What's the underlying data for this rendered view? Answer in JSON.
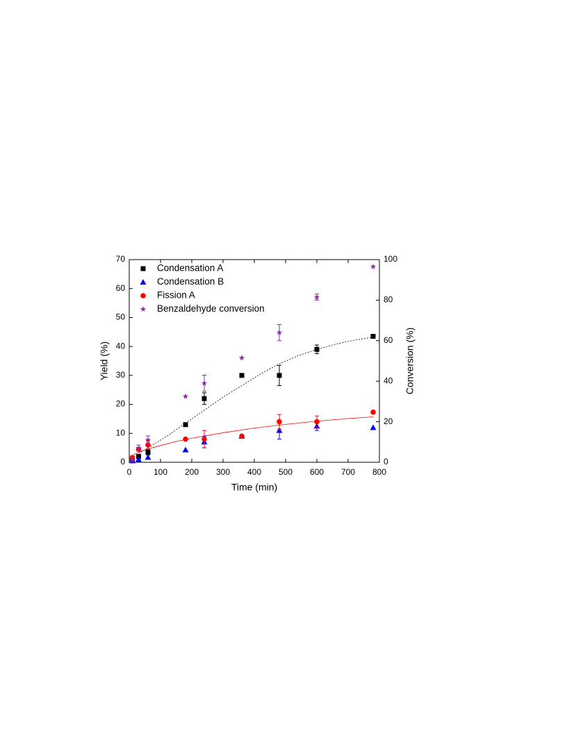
{
  "chart_data": {
    "type": "scatter",
    "x_label": "Time (min)",
    "y_label": "Yield (%)",
    "y2_label": "Conversion (%)",
    "xlim": [
      0,
      800
    ],
    "xticks": [
      0,
      100,
      200,
      300,
      400,
      500,
      600,
      700,
      800
    ],
    "ylim": [
      0,
      70
    ],
    "yticks": [
      0,
      10,
      20,
      30,
      40,
      50,
      60,
      70
    ],
    "y2lim": [
      0,
      100
    ],
    "y2ticks": [
      0,
      20,
      40,
      60,
      80,
      100
    ],
    "legend": "top-left",
    "series": [
      {
        "name": "Condensation A",
        "color": "#000000",
        "marker": "square",
        "x": [
          10,
          30,
          60,
          180,
          240,
          360,
          480,
          600,
          780
        ],
        "values": [
          1,
          2,
          3.5,
          13,
          22,
          30,
          30,
          39,
          43.5
        ],
        "errors": [
          null,
          null,
          1,
          null,
          2,
          null,
          3.5,
          1.5,
          null
        ]
      },
      {
        "name": "Condensation B",
        "color": "#0000ff",
        "marker": "triangle",
        "x": [
          10,
          30,
          60,
          180,
          240,
          360,
          480,
          600,
          780
        ],
        "values": [
          0.5,
          1,
          1.7,
          4.3,
          7,
          9,
          11,
          12.5,
          12
        ],
        "errors": [
          null,
          null,
          null,
          null,
          2,
          null,
          3,
          1.5,
          null
        ]
      },
      {
        "name": "Fission A",
        "color": "#ff0000",
        "marker": "circle",
        "x": [
          10,
          30,
          60,
          180,
          240,
          360,
          480,
          600,
          780
        ],
        "values": [
          1.5,
          4.5,
          6,
          8,
          8,
          9,
          14,
          14,
          17.3
        ],
        "errors": [
          null,
          null,
          1.5,
          null,
          3,
          null,
          2.5,
          2,
          null
        ]
      },
      {
        "name": "Benzaldehyde conversion",
        "color": "#8b2f9f",
        "marker": "star",
        "axis": "y2",
        "x": [
          10,
          30,
          60,
          180,
          240,
          360,
          480,
          600,
          780
        ],
        "values": [
          1,
          7,
          11,
          32.5,
          39,
          51.5,
          64,
          81.5,
          96.5
        ],
        "errors": [
          null,
          1.5,
          2,
          null,
          4,
          null,
          4,
          1.5,
          null
        ]
      }
    ],
    "fits": [
      {
        "color": "#000000",
        "dash": "2,2",
        "x": [
          0,
          60,
          120,
          180,
          240,
          300,
          360,
          420,
          480,
          540,
          600,
          660,
          720,
          780
        ],
        "values": [
          1,
          5,
          9,
          13.5,
          18,
          22.5,
          26.5,
          30.5,
          34,
          36.8,
          39,
          40.8,
          42.2,
          43.2
        ]
      },
      {
        "color": "#ff0000",
        "dash": "none",
        "x": [
          0,
          50,
          100,
          150,
          200,
          300,
          400,
          500,
          600,
          700,
          780
        ],
        "values": [
          2,
          4.3,
          5.8,
          7.2,
          8.3,
          10.2,
          11.8,
          13.1,
          14.2,
          15.1,
          15.7
        ]
      }
    ]
  }
}
